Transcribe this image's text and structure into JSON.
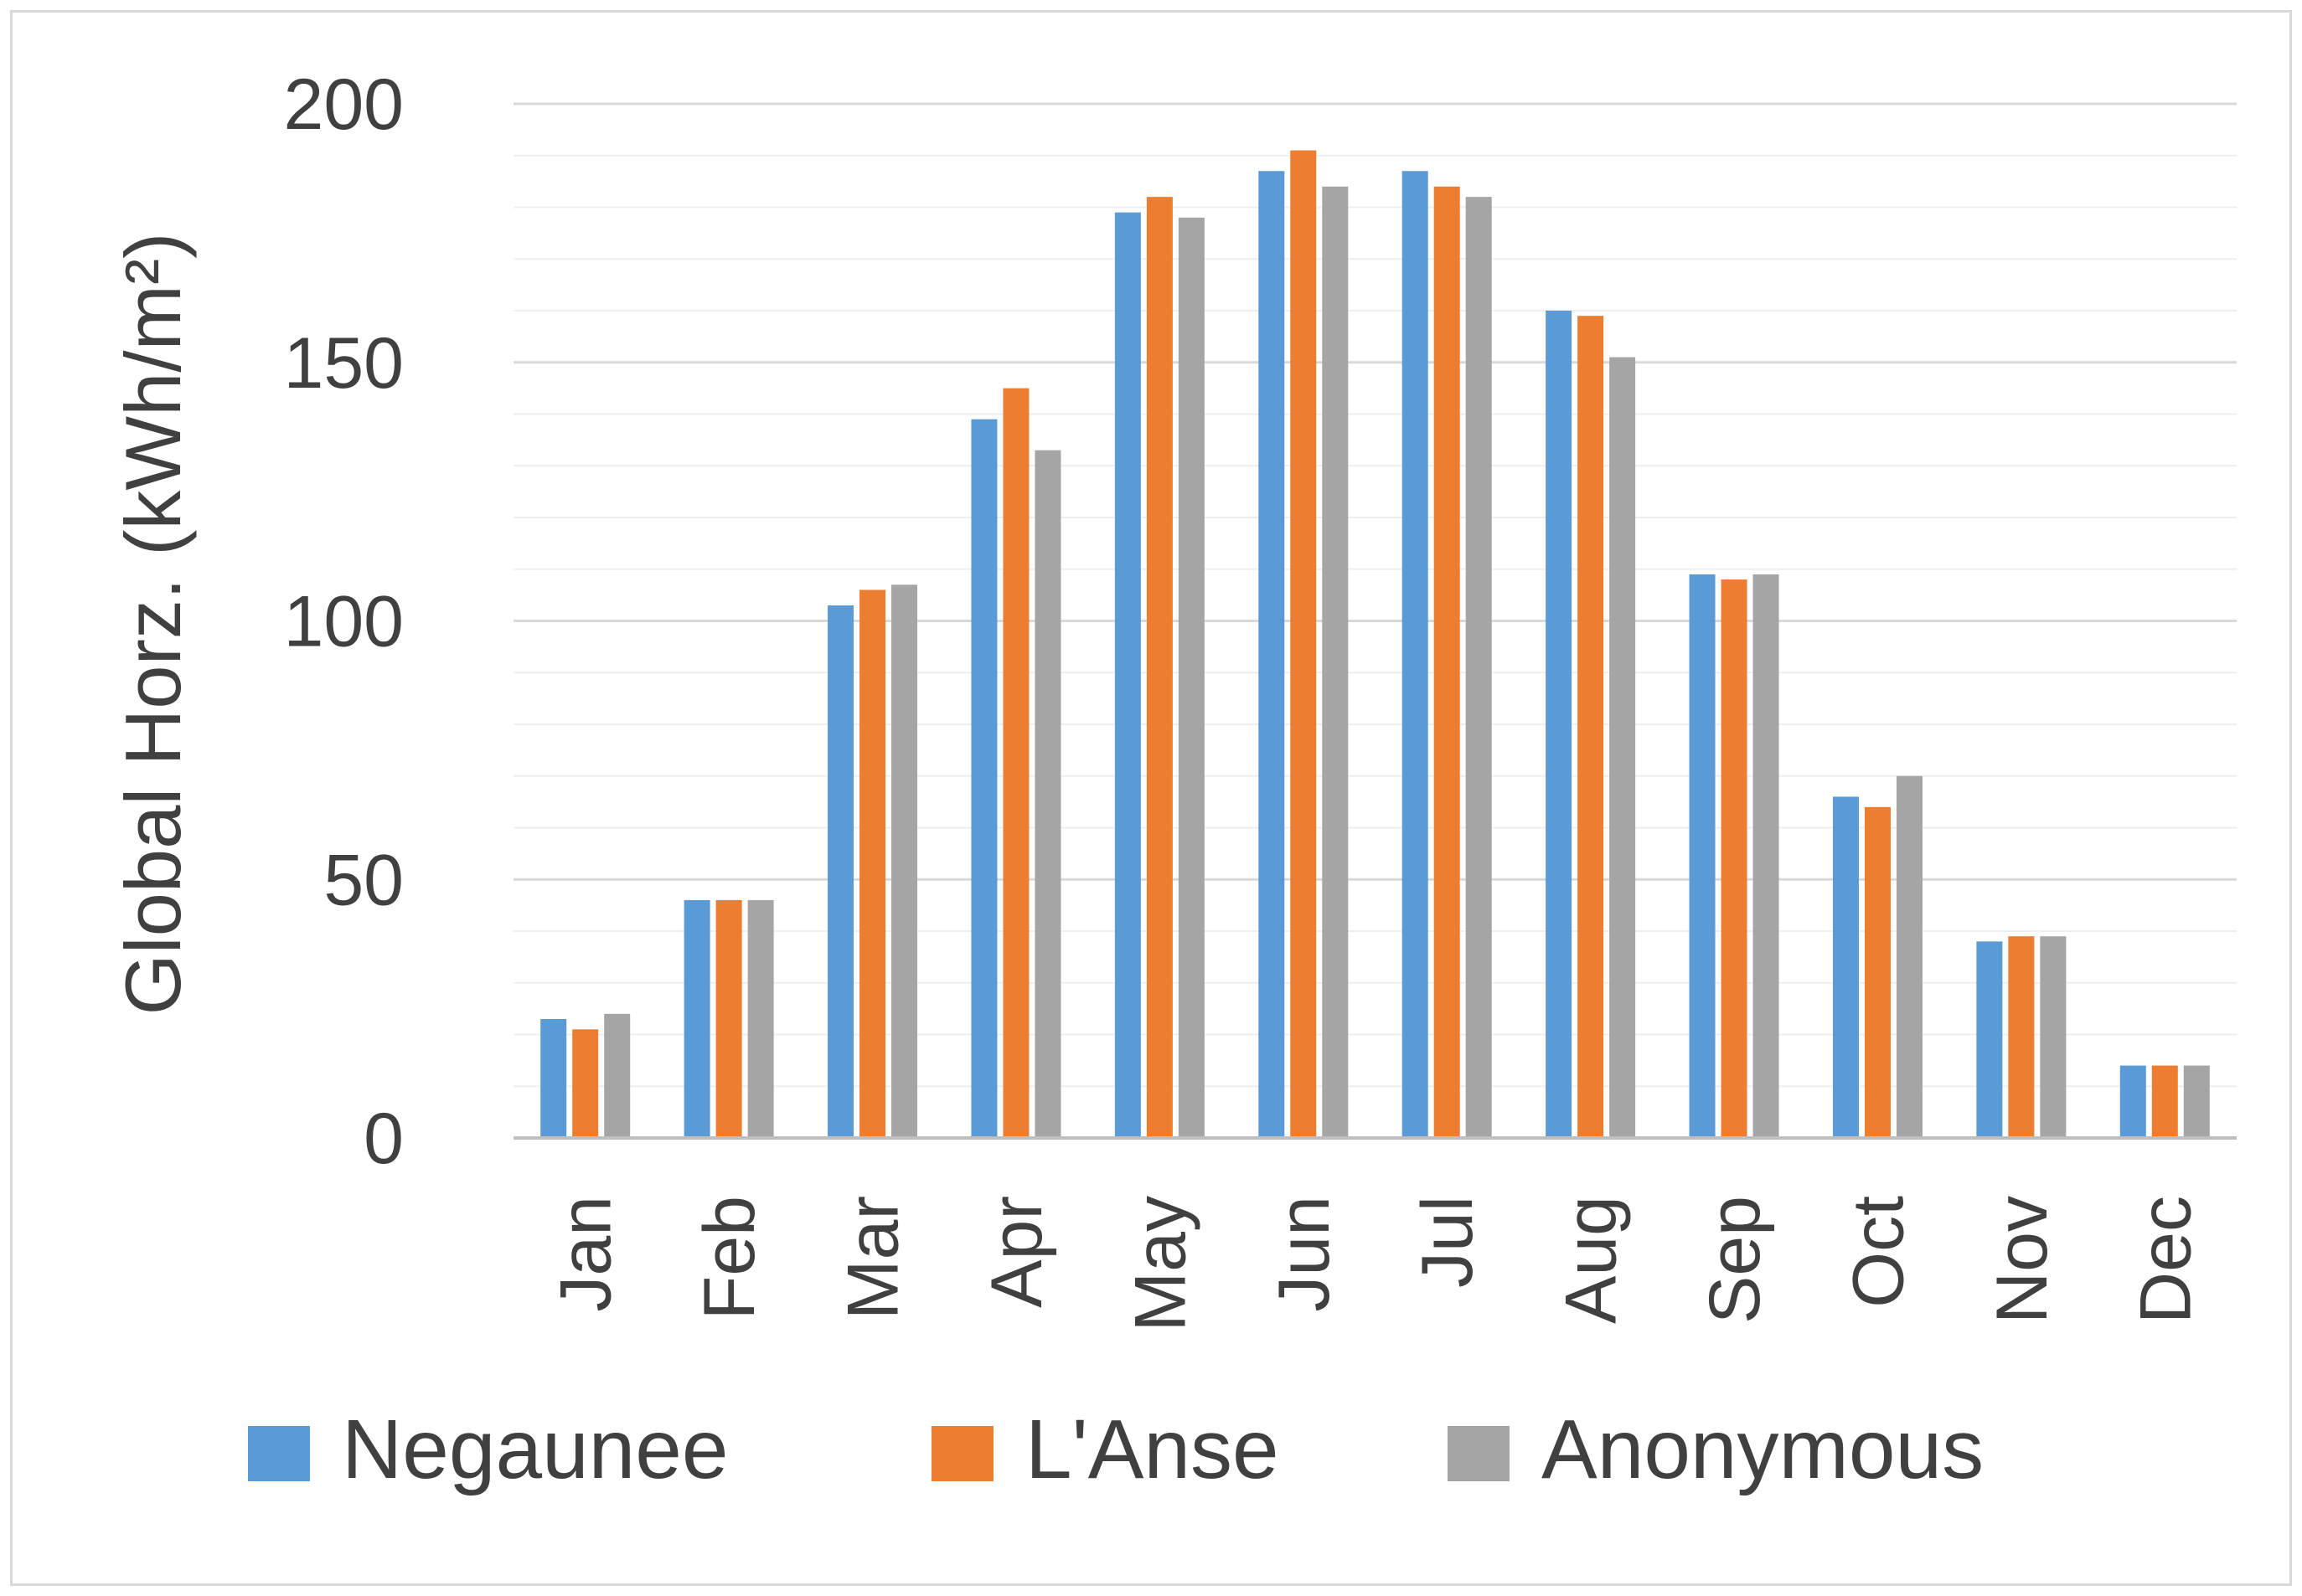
{
  "chart_data": {
    "type": "bar",
    "title": "",
    "xlabel": "",
    "ylabel": "Global Horz. (kWh/m²)",
    "ylim": [
      0,
      200
    ],
    "yticks": [
      0,
      50,
      100,
      150,
      200
    ],
    "grid": true,
    "legend_position": "bottom",
    "categories": [
      "Jan",
      "Feb",
      "Mar",
      "Apr",
      "May",
      "Jun",
      "Jul",
      "Aug",
      "Sep",
      "Oct",
      "Nov",
      "Dec"
    ],
    "series": [
      {
        "name": "Negaunee",
        "color": "#5b9bd5",
        "values": [
          23,
          46,
          103,
          139,
          179,
          187,
          187,
          160,
          109,
          66,
          38,
          14
        ]
      },
      {
        "name": "L'Anse",
        "color": "#ed7d31",
        "values": [
          21,
          46,
          106,
          145,
          182,
          191,
          184,
          159,
          108,
          64,
          39,
          14
        ]
      },
      {
        "name": "Anonymous",
        "color": "#a5a5a5",
        "values": [
          24,
          46,
          107,
          133,
          178,
          184,
          182,
          151,
          109,
          70,
          39,
          14
        ]
      }
    ]
  }
}
